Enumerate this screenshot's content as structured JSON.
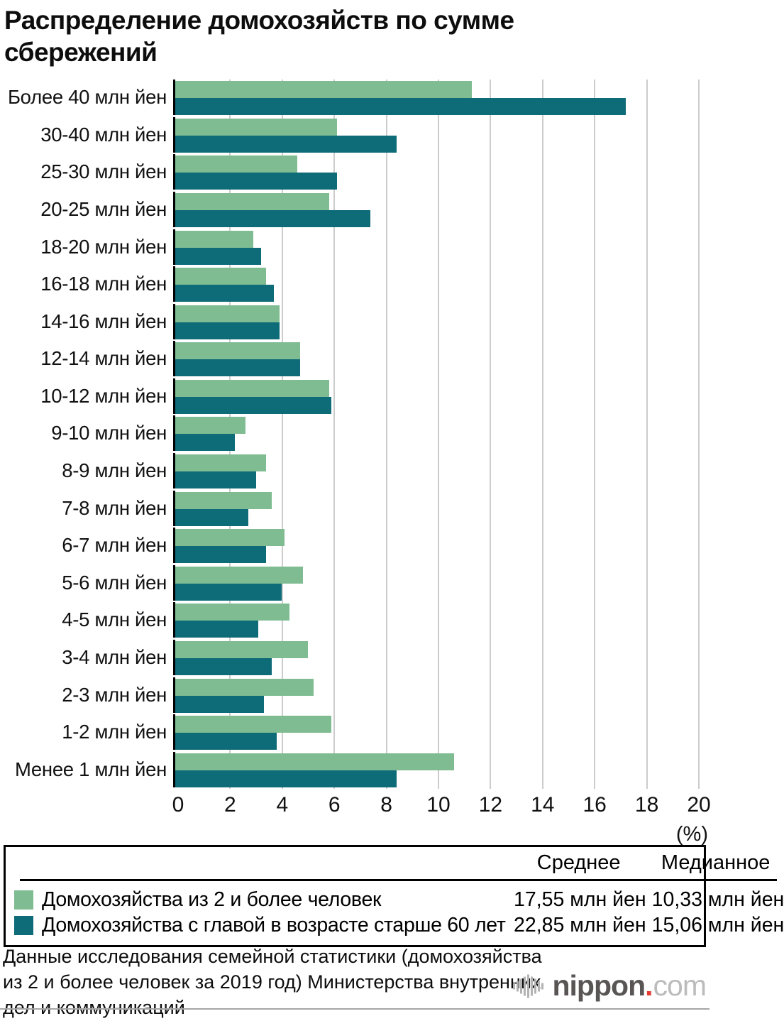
{
  "title": "Распределение домохозяйств по сумме сбережений",
  "chart_data": {
    "type": "bar",
    "orientation": "horizontal",
    "categories": [
      "Более 40 млн йен",
      "30-40 млн йен",
      "25-30 млн йен",
      "20-25 млн йен",
      "18-20 млн йен",
      "16-18 млн йен",
      "14-16 млн йен",
      "12-14 млн йен",
      "10-12 млн йен",
      "9-10 млн йен",
      "8-9 млн йен",
      "7-8 млн йен",
      "6-7 млн йен",
      "5-6 млн йен",
      "4-5 млн йен",
      "3-4 млн йен",
      "2-3 млн йен",
      "1-2 млн йен",
      "Менее 1 млн йен"
    ],
    "series": [
      {
        "name": "Домохозяйства из 2 и более человек",
        "color": "#7fbc92",
        "values": [
          11.4,
          6.2,
          4.7,
          5.9,
          3.0,
          3.5,
          4.0,
          4.8,
          5.9,
          2.7,
          3.5,
          3.7,
          4.2,
          4.9,
          4.4,
          5.1,
          5.3,
          6.0,
          10.7
        ]
      },
      {
        "name": "Домохозяйства с главой в возрасте старше 60 лет",
        "color": "#0e6b78",
        "values": [
          17.3,
          8.5,
          6.2,
          7.5,
          3.3,
          3.8,
          4.0,
          4.8,
          6.0,
          2.3,
          3.1,
          2.8,
          3.5,
          4.1,
          3.2,
          3.7,
          3.4,
          3.9,
          8.5
        ]
      }
    ],
    "xlim": [
      0,
      20
    ],
    "x_ticks": [
      0,
      2,
      4,
      6,
      8,
      10,
      12,
      14,
      16,
      18,
      20
    ],
    "x_unit": "(%)",
    "grid": true,
    "gridline_color": "#cccccc",
    "axis_color": "#000000"
  },
  "legend": {
    "col_mean": "Среднее",
    "col_median": "Медианное",
    "rows": [
      {
        "label": "Домохозяйства из 2 и более человек",
        "color": "#7fbc92",
        "mean": "17,55 млн йен",
        "median": "10,33 млн йен"
      },
      {
        "label": "Домохозяйства с главой в возрасте старше 60 лет",
        "color": "#0e6b78",
        "mean": "22,85 млн йен",
        "median": "15,06 млн йен"
      }
    ]
  },
  "footer": {
    "source": "Данные исследования семейной статистики (домохозяйства из 2 и более человек за 2019 год) Министерства внутренних дел и коммуникаций",
    "logo_name": "nippon",
    "logo_dot": ".",
    "logo_tld": "com"
  }
}
